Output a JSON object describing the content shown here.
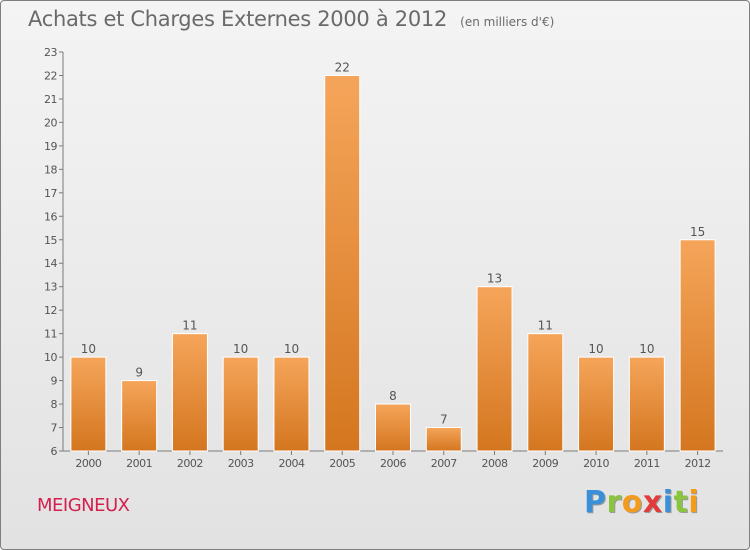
{
  "header": {
    "title": "Achats et Charges Externes 2000 à 2012",
    "subtitle": "(en milliers d'€)"
  },
  "footer": {
    "municipality": "MEIGNEUX",
    "brand_letters": [
      "P",
      "r",
      "o",
      "x",
      "i",
      "t",
      "i"
    ]
  },
  "colors": {
    "bar_light": "#f5a55a",
    "bar_dark": "#d4761f",
    "municipality": "#d4204f"
  },
  "chart_data": {
    "type": "bar",
    "title": "Achats et Charges Externes 2000 à 2012",
    "subtitle": "(en milliers d'€)",
    "xlabel": "",
    "ylabel": "",
    "categories": [
      "2000",
      "2001",
      "2002",
      "2003",
      "2004",
      "2005",
      "2006",
      "2007",
      "2008",
      "2009",
      "2010",
      "2011",
      "2012"
    ],
    "values": [
      10,
      9,
      11,
      10,
      10,
      22,
      8,
      7,
      13,
      11,
      10,
      10,
      15
    ],
    "ylim": [
      6,
      23
    ],
    "yticks": [
      6,
      7,
      8,
      9,
      10,
      11,
      12,
      13,
      14,
      15,
      16,
      17,
      18,
      19,
      20,
      21,
      22,
      23
    ],
    "grid": false,
    "data_labels": true
  }
}
